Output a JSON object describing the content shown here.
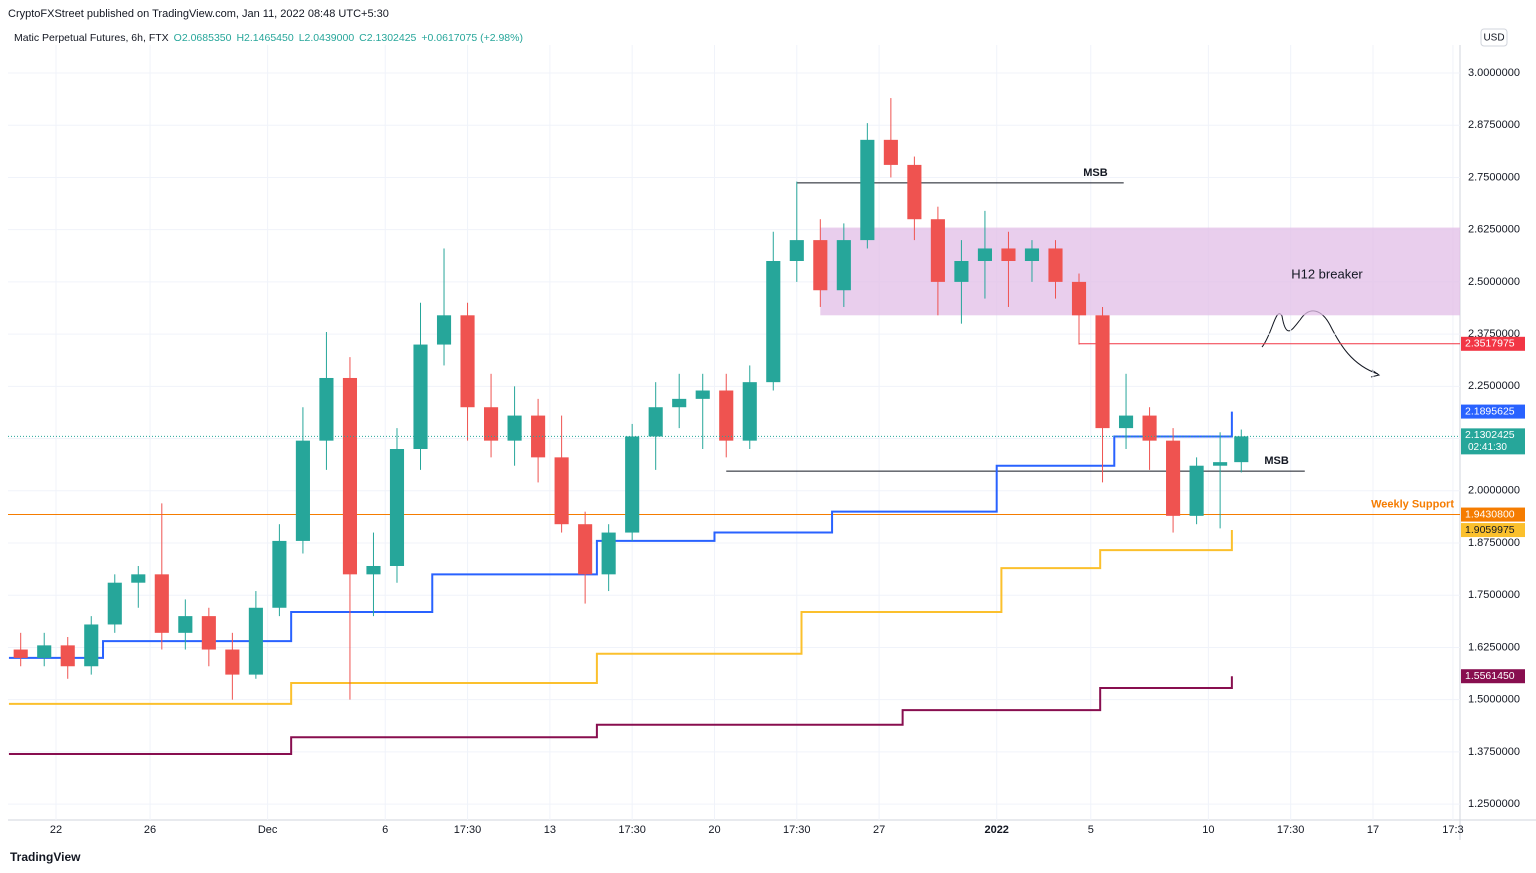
{
  "header": {
    "title": "CryptoFXStreet published on TradingView.com, Jan 11, 2022 08:48 UTC+5:30",
    "symbol": "Matic Perpetual Futures, 6h, FTX",
    "open": "O2.0685350",
    "high": "H2.1465450",
    "low": "L2.0439000",
    "close": "C2.1302425",
    "change": "+0.0617075 (+2.98%)",
    "currency": "USD",
    "brand": "TradingView",
    "timer": "02:41:30"
  },
  "chart_data": {
    "type": "candlestick",
    "up_color": "#26a69a",
    "down_color": "#ef5350",
    "grid": true,
    "xlim": [
      -2.04,
      59.7
    ],
    "ylim": [
      1.212,
      3.067
    ],
    "xticks": [
      {
        "value": 0,
        "label": "22"
      },
      {
        "value": 4,
        "label": "26"
      },
      {
        "value": 9,
        "label": "Dec"
      },
      {
        "value": 14,
        "label": "6"
      },
      {
        "value": 17.5,
        "label": "17:30"
      },
      {
        "value": 21,
        "label": "13"
      },
      {
        "value": 24.5,
        "label": "17:30"
      },
      {
        "value": 28,
        "label": "20"
      },
      {
        "value": 31.5,
        "label": "17:30"
      },
      {
        "value": 35,
        "label": "27"
      },
      {
        "value": 40,
        "label": "2022"
      },
      {
        "value": 44,
        "label": "5"
      },
      {
        "value": 49,
        "label": "10"
      },
      {
        "value": 52.5,
        "label": "17:30"
      },
      {
        "value": 56,
        "label": "17"
      },
      {
        "value": 59.4,
        "label": "17:3"
      }
    ],
    "yticks": [
      {
        "value": 3,
        "label": "3.0000000"
      },
      {
        "value": 2.875,
        "label": "2.8750000"
      },
      {
        "value": 2.75,
        "label": "2.7500000"
      },
      {
        "value": 2.625,
        "label": "2.6250000"
      },
      {
        "value": 2.5,
        "label": "2.5000000"
      },
      {
        "value": 2.375,
        "label": "2.3750000"
      },
      {
        "value": 2.25,
        "label": "2.2500000"
      },
      {
        "value": 2.125,
        "label": "2.1250000"
      },
      {
        "value": 2,
        "label": "2.0000000"
      },
      {
        "value": 1.875,
        "label": "1.8750000"
      },
      {
        "value": 1.75,
        "label": "1.7500000"
      },
      {
        "value": 1.625,
        "label": "1.6250000"
      },
      {
        "value": 1.5,
        "label": "1.5000000"
      },
      {
        "value": 1.375,
        "label": "1.3750000"
      },
      {
        "value": 1.25,
        "label": "1.2500000"
      }
    ],
    "x": [
      -2,
      -1,
      0,
      1,
      2,
      3,
      4,
      5,
      6,
      7,
      8,
      9,
      10,
      11,
      12,
      13,
      14,
      15,
      16,
      17,
      18,
      19,
      20,
      21,
      22,
      23,
      24,
      25,
      26,
      27,
      28,
      29,
      30,
      31,
      32,
      33,
      34,
      35,
      36,
      37,
      38,
      39,
      40,
      41,
      42,
      43,
      44,
      45,
      46,
      47,
      48,
      49,
      49.9
    ],
    "open": [
      1.62,
      1.6,
      1.63,
      1.58,
      1.68,
      1.78,
      1.8,
      1.66,
      1.7,
      1.62,
      1.56,
      1.72,
      1.88,
      2.12,
      2.27,
      1.8,
      1.82,
      2.1,
      2.35,
      2.42,
      2.2,
      2.12,
      2.18,
      2.08,
      1.92,
      1.8,
      1.9,
      2.13,
      2.2,
      2.22,
      2.24,
      2.12,
      2.26,
      2.55,
      2.6,
      2.48,
      2.6,
      2.84,
      2.78,
      2.65,
      2.5,
      2.55,
      2.58,
      2.55,
      2.58,
      2.5,
      2.42,
      2.15,
      2.18,
      2.12,
      1.94,
      2.06,
      2.068535
    ],
    "high": [
      1.66,
      1.66,
      1.65,
      1.7,
      1.8,
      1.82,
      1.97,
      1.74,
      1.72,
      1.66,
      1.76,
      1.92,
      2.2,
      2.38,
      2.32,
      1.9,
      2.15,
      2.45,
      2.58,
      2.45,
      2.28,
      2.25,
      2.22,
      2.18,
      1.95,
      1.92,
      2.16,
      2.26,
      2.28,
      2.28,
      2.28,
      2.3,
      2.62,
      2.74,
      2.65,
      2.64,
      2.88,
      2.94,
      2.8,
      2.68,
      2.6,
      2.67,
      2.62,
      2.6,
      2.6,
      2.52,
      2.44,
      2.28,
      2.2,
      2.15,
      2.08,
      2.14,
      2.146545
    ],
    "low": [
      1.58,
      1.58,
      1.55,
      1.56,
      1.66,
      1.72,
      1.62,
      1.62,
      1.58,
      1.5,
      1.55,
      1.7,
      1.85,
      2.05,
      1.5,
      1.7,
      1.78,
      2.05,
      2.3,
      2.12,
      2.08,
      2.06,
      2.02,
      1.9,
      1.73,
      1.76,
      1.88,
      2.05,
      2.15,
      2.1,
      2.08,
      2.1,
      2.24,
      2.5,
      2.44,
      2.44,
      2.58,
      2.75,
      2.6,
      2.42,
      2.4,
      2.46,
      2.44,
      2.5,
      2.46,
      2.35,
      2.02,
      2.1,
      2.05,
      1.9,
      1.92,
      1.91,
      2.0439
    ],
    "close": [
      1.6,
      1.63,
      1.58,
      1.68,
      1.78,
      1.8,
      1.66,
      1.7,
      1.62,
      1.56,
      1.72,
      1.88,
      2.12,
      2.27,
      1.8,
      1.82,
      2.1,
      2.35,
      2.42,
      2.2,
      2.12,
      2.18,
      2.08,
      1.92,
      1.8,
      1.9,
      2.13,
      2.2,
      2.22,
      2.24,
      2.12,
      2.26,
      2.55,
      2.6,
      2.48,
      2.6,
      2.84,
      2.78,
      2.65,
      2.5,
      2.55,
      2.58,
      2.55,
      2.58,
      2.5,
      2.42,
      2.15,
      2.18,
      2.12,
      1.94,
      2.06,
      2.068535,
      2.1302425
    ],
    "series": [
      {
        "color": "#2962ff",
        "x": [
          -2,
          2,
          10,
          16,
          23,
          28,
          33,
          40,
          45,
          50
        ],
        "values": [
          1.6,
          1.64,
          1.71,
          1.8,
          1.88,
          1.9,
          1.95,
          2.06,
          2.13,
          2.1895625
        ],
        "last_label": "2.1895625"
      },
      {
        "color": "#fbc02d",
        "x": [
          -2,
          10,
          23,
          31.7,
          40.2,
          44.4,
          50
        ],
        "values": [
          1.49,
          1.54,
          1.61,
          1.71,
          1.815,
          1.858,
          1.9059975
        ],
        "last_label": "1.9059975"
      },
      {
        "color": "#880e4f",
        "x": [
          -2,
          10,
          23,
          36,
          44.4,
          50
        ],
        "values": [
          1.37,
          1.41,
          1.44,
          1.475,
          1.528,
          1.556145
        ],
        "last_label": "1.5561450"
      }
    ],
    "levels": [
      {
        "name": "Weekly Support",
        "value": 1.94308,
        "label": "1.9430800",
        "color": "#f57c00",
        "x": [
          -2.04,
          59.7
        ]
      },
      {
        "value": 2.3517975,
        "label": "2.3517975",
        "color": "#f23645",
        "x": [
          43.5,
          59.7
        ]
      },
      {
        "name": "MSB",
        "value": 2.737,
        "color": "#131722",
        "x": [
          31.5,
          45.4
        ]
      },
      {
        "name": "MSB",
        "value": 2.047,
        "color": "#131722",
        "x": [
          28.5,
          53.1
        ]
      }
    ],
    "zone": {
      "name": "H12 breaker",
      "low": 2.42,
      "high": 2.63,
      "x": [
        32.5,
        59.7
      ],
      "color": "#e1bee7"
    }
  }
}
